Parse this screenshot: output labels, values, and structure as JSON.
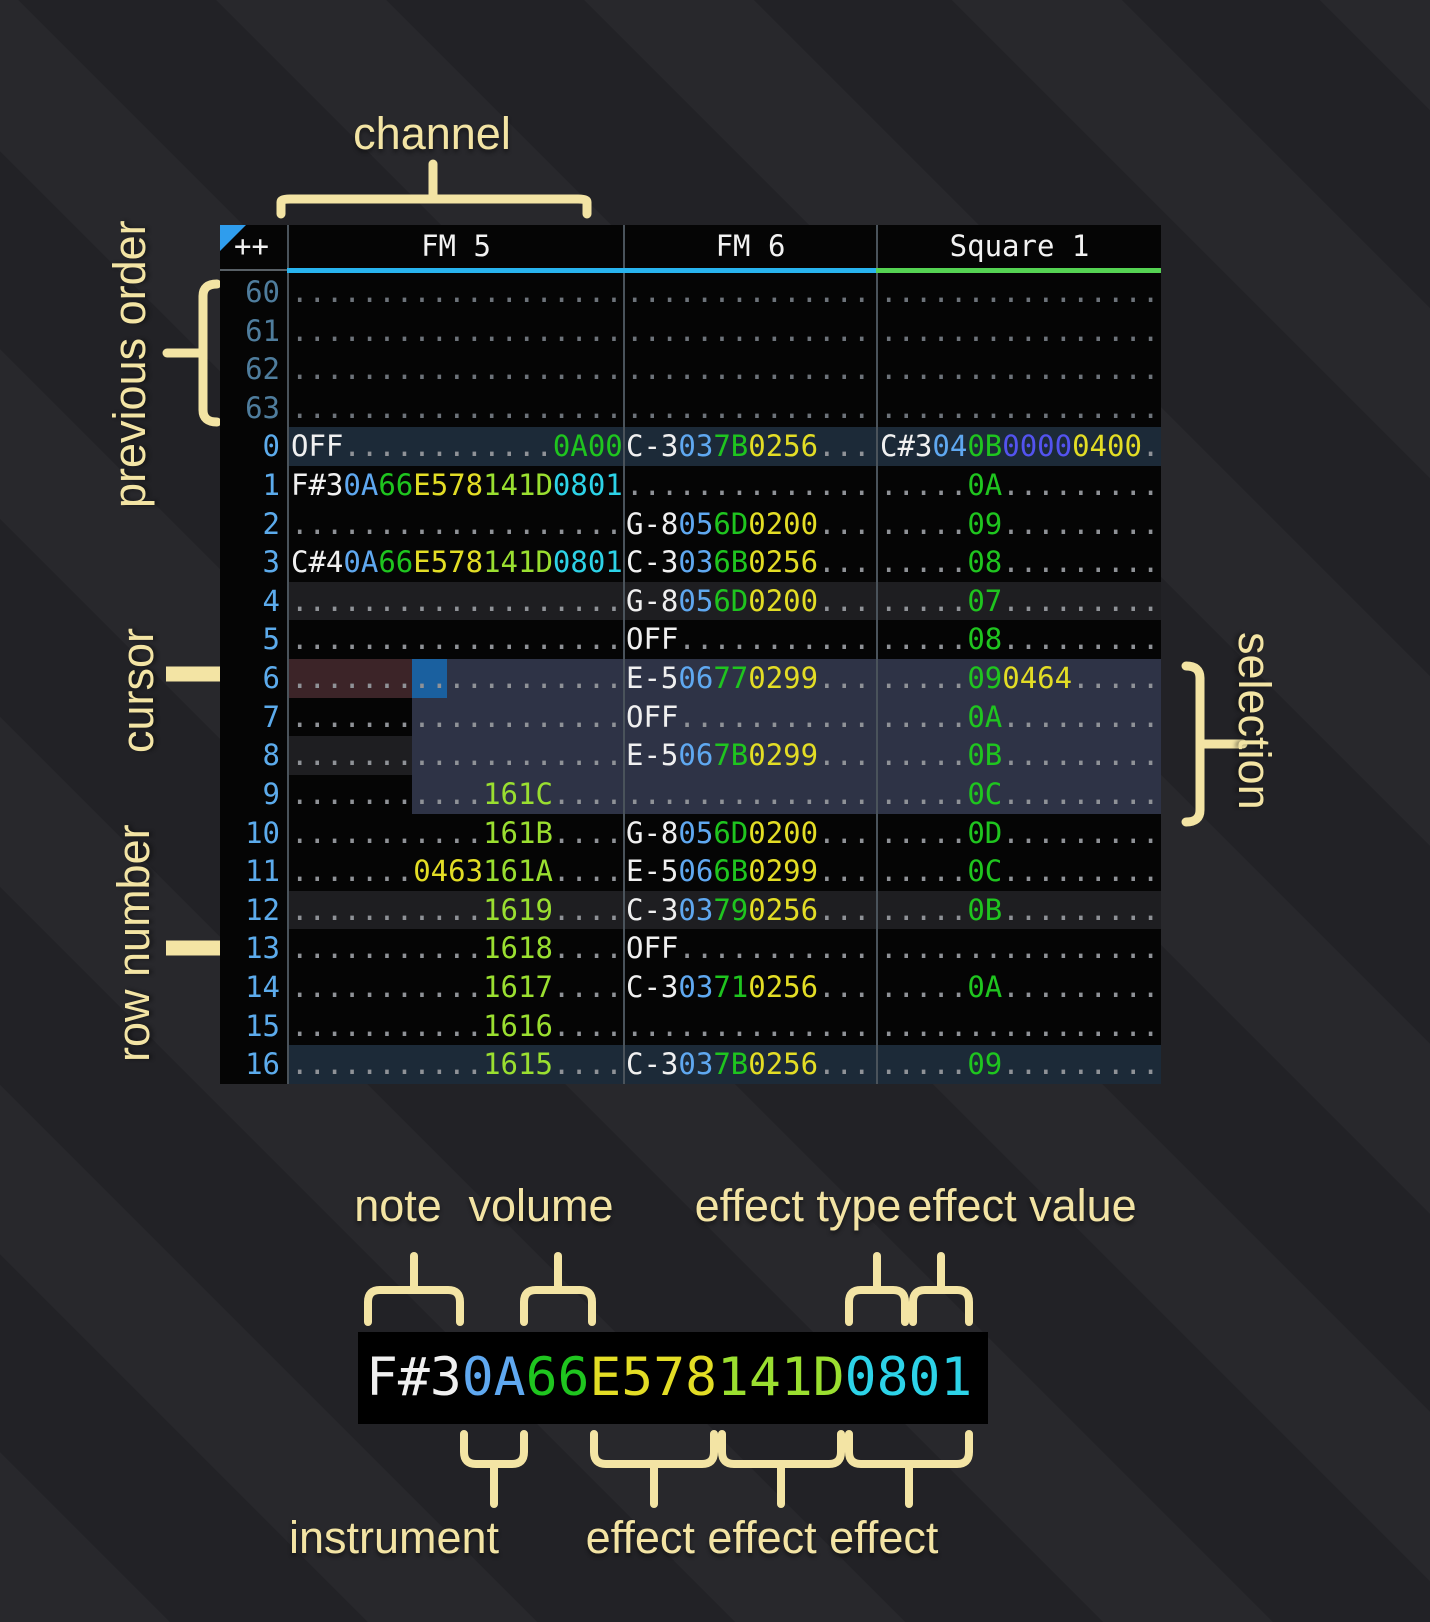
{
  "colors": {
    "anno": "#f3e4a4",
    "table-bg": "#050505",
    "grid-line": "#4a535b",
    "hl1": "#1e1e21",
    "hl2": "#1c2a38",
    "sel": "#2e3346",
    "cursor": "#1a609f",
    "maroon": "#3c2428",
    "note": "#f0f0f0",
    "ins": "#5fa8f0",
    "vol": "#1fc51f",
    "fxY": "#e3dd25",
    "fxL": "#9adf30",
    "fxC": "#2dd3e8",
    "fxI": "#5353ef",
    "fxG": "#1fc51f",
    "dot": "#8f9297",
    "dotp": "#6d737a",
    "rownum": "#5cabec",
    "rownum-prev": "#4f7d9d"
  },
  "header": {
    "corner": "++",
    "channels": [
      {
        "name": "FM 5",
        "color": "#28b4ef"
      },
      {
        "name": "FM 6",
        "color": "#28b4ef"
      },
      {
        "name": "Square 1",
        "color": "#55d353"
      }
    ]
  },
  "pattern": {
    "rows": [
      {
        "num": "60",
        "style": "prev",
        "cells": {
          "fm5": [
            [
              "...................",
              "dotp"
            ]
          ],
          "fm6": [
            [
              "..............",
              "dotp"
            ]
          ],
          "sq1": [
            [
              "................",
              "dotp"
            ]
          ]
        }
      },
      {
        "num": "61",
        "style": "prev",
        "cells": {
          "fm5": [
            [
              "...................",
              "dotp"
            ]
          ],
          "fm6": [
            [
              "..............",
              "dotp"
            ]
          ],
          "sq1": [
            [
              "................",
              "dotp"
            ]
          ]
        }
      },
      {
        "num": "62",
        "style": "prev",
        "cells": {
          "fm5": [
            [
              "...................",
              "dotp"
            ]
          ],
          "fm6": [
            [
              "..............",
              "dotp"
            ]
          ],
          "sq1": [
            [
              "................",
              "dotp"
            ]
          ]
        }
      },
      {
        "num": "63",
        "style": "prev",
        "cells": {
          "fm5": [
            [
              "...................",
              "dotp"
            ]
          ],
          "fm6": [
            [
              "..............",
              "dotp"
            ]
          ],
          "sq1": [
            [
              "................",
              "dotp"
            ]
          ]
        }
      },
      {
        "num": "0",
        "style": "hl2",
        "cells": {
          "fm5": [
            [
              "OFF",
              "note"
            ],
            [
              "............",
              "dot"
            ],
            [
              "0A00",
              "fxG"
            ]
          ],
          "fm6": [
            [
              "C-3",
              "note"
            ],
            [
              "03",
              "ins"
            ],
            [
              "7B",
              "vol"
            ],
            [
              "0256",
              "fxY"
            ],
            [
              "...",
              "dot"
            ]
          ],
          "sq1": [
            [
              "C#3",
              "note"
            ],
            [
              "04",
              "ins"
            ],
            [
              "0B",
              "vol"
            ],
            [
              "0000",
              "fxI"
            ],
            [
              "0400",
              "fxY"
            ],
            [
              ".",
              "dot"
            ]
          ]
        }
      },
      {
        "num": "1",
        "style": "",
        "cells": {
          "fm5": [
            [
              "F#3",
              "note"
            ],
            [
              "0A",
              "ins"
            ],
            [
              "66",
              "vol"
            ],
            [
              "E578",
              "fxY"
            ],
            [
              "141D",
              "fxL"
            ],
            [
              "0801",
              "fxC"
            ]
          ],
          "fm6": [
            [
              "..............",
              "dot"
            ]
          ],
          "sq1": [
            [
              ".....",
              "dot"
            ],
            [
              "0A",
              "vol"
            ],
            [
              ".........",
              "dot"
            ]
          ]
        }
      },
      {
        "num": "2",
        "style": "",
        "cells": {
          "fm5": [
            [
              "...................",
              "dot"
            ]
          ],
          "fm6": [
            [
              "G-8",
              "note"
            ],
            [
              "05",
              "ins"
            ],
            [
              "6D",
              "vol"
            ],
            [
              "0200",
              "fxY"
            ],
            [
              "...",
              "dot"
            ]
          ],
          "sq1": [
            [
              ".....",
              "dot"
            ],
            [
              "09",
              "vol"
            ],
            [
              ".........",
              "dot"
            ]
          ]
        }
      },
      {
        "num": "3",
        "style": "",
        "cells": {
          "fm5": [
            [
              "C#4",
              "note"
            ],
            [
              "0A",
              "ins"
            ],
            [
              "66",
              "vol"
            ],
            [
              "E578",
              "fxY"
            ],
            [
              "141D",
              "fxL"
            ],
            [
              "0801",
              "fxC"
            ]
          ],
          "fm6": [
            [
              "C-3",
              "note"
            ],
            [
              "03",
              "ins"
            ],
            [
              "6B",
              "vol"
            ],
            [
              "0256",
              "fxY"
            ],
            [
              "...",
              "dot"
            ]
          ],
          "sq1": [
            [
              ".....",
              "dot"
            ],
            [
              "08",
              "vol"
            ],
            [
              ".........",
              "dot"
            ]
          ]
        }
      },
      {
        "num": "4",
        "style": "hl1",
        "cells": {
          "fm5": [
            [
              "...................",
              "dot"
            ]
          ],
          "fm6": [
            [
              "G-8",
              "note"
            ],
            [
              "05",
              "ins"
            ],
            [
              "6D",
              "vol"
            ],
            [
              "0200",
              "fxY"
            ],
            [
              "...",
              "dot"
            ]
          ],
          "sq1": [
            [
              ".....",
              "dot"
            ],
            [
              "07",
              "vol"
            ],
            [
              ".........",
              "dot"
            ]
          ]
        }
      },
      {
        "num": "5",
        "style": "",
        "cells": {
          "fm5": [
            [
              "...................",
              "dot"
            ]
          ],
          "fm6": [
            [
              "OFF",
              "note"
            ],
            [
              "...........",
              "dot"
            ]
          ],
          "sq1": [
            [
              ".....",
              "dot"
            ],
            [
              "08",
              "vol"
            ],
            [
              ".........",
              "dot"
            ]
          ]
        }
      },
      {
        "num": "6",
        "style": "cur",
        "cells": {
          "fm5": [
            [
              "...................",
              "dot"
            ]
          ],
          "fm6": [
            [
              "E-5",
              "note"
            ],
            [
              "06",
              "ins"
            ],
            [
              "77",
              "vol"
            ],
            [
              "0299",
              "fxY"
            ],
            [
              "...",
              "dot"
            ]
          ],
          "sq1": [
            [
              ".....",
              "dot"
            ],
            [
              "09",
              "vol"
            ],
            [
              "0464",
              "fxY"
            ],
            [
              ".....",
              "dot"
            ]
          ]
        }
      },
      {
        "num": "7",
        "style": "sel",
        "cells": {
          "fm5": [
            [
              "...................",
              "dot"
            ]
          ],
          "fm6": [
            [
              "OFF",
              "note"
            ],
            [
              "...........",
              "dot"
            ]
          ],
          "sq1": [
            [
              ".....",
              "dot"
            ],
            [
              "0A",
              "vol"
            ],
            [
              ".........",
              "dot"
            ]
          ]
        }
      },
      {
        "num": "8",
        "style": "hl1 sel",
        "cells": {
          "fm5": [
            [
              "...................",
              "dot"
            ]
          ],
          "fm6": [
            [
              "E-5",
              "note"
            ],
            [
              "06",
              "ins"
            ],
            [
              "7B",
              "vol"
            ],
            [
              "0299",
              "fxY"
            ],
            [
              "...",
              "dot"
            ]
          ],
          "sq1": [
            [
              ".....",
              "dot"
            ],
            [
              "0B",
              "vol"
            ],
            [
              ".........",
              "dot"
            ]
          ]
        }
      },
      {
        "num": "9",
        "style": "sel",
        "cells": {
          "fm5": [
            [
              "...........",
              "dot"
            ],
            [
              "161C",
              "fxL"
            ],
            [
              "....",
              "dot"
            ]
          ],
          "fm6": [
            [
              "..............",
              "dot"
            ]
          ],
          "sq1": [
            [
              ".....",
              "dot"
            ],
            [
              "0C",
              "vol"
            ],
            [
              ".........",
              "dot"
            ]
          ]
        }
      },
      {
        "num": "10",
        "style": "",
        "cells": {
          "fm5": [
            [
              "...........",
              "dot"
            ],
            [
              "161B",
              "fxL"
            ],
            [
              "....",
              "dot"
            ]
          ],
          "fm6": [
            [
              "G-8",
              "note"
            ],
            [
              "05",
              "ins"
            ],
            [
              "6D",
              "vol"
            ],
            [
              "0200",
              "fxY"
            ],
            [
              "...",
              "dot"
            ]
          ],
          "sq1": [
            [
              ".....",
              "dot"
            ],
            [
              "0D",
              "vol"
            ],
            [
              ".........",
              "dot"
            ]
          ]
        }
      },
      {
        "num": "11",
        "style": "",
        "cells": {
          "fm5": [
            [
              ".......",
              "dot"
            ],
            [
              "0463",
              "fxY"
            ],
            [
              "161A",
              "fxL"
            ],
            [
              "....",
              "dot"
            ]
          ],
          "fm6": [
            [
              "E-5",
              "note"
            ],
            [
              "06",
              "ins"
            ],
            [
              "6B",
              "vol"
            ],
            [
              "0299",
              "fxY"
            ],
            [
              "...",
              "dot"
            ]
          ],
          "sq1": [
            [
              ".....",
              "dot"
            ],
            [
              "0C",
              "vol"
            ],
            [
              ".........",
              "dot"
            ]
          ]
        }
      },
      {
        "num": "12",
        "style": "hl1",
        "cells": {
          "fm5": [
            [
              "...........",
              "dot"
            ],
            [
              "1619",
              "fxL"
            ],
            [
              "....",
              "dot"
            ]
          ],
          "fm6": [
            [
              "C-3",
              "note"
            ],
            [
              "03",
              "ins"
            ],
            [
              "79",
              "vol"
            ],
            [
              "0256",
              "fxY"
            ],
            [
              "...",
              "dot"
            ]
          ],
          "sq1": [
            [
              ".....",
              "dot"
            ],
            [
              "0B",
              "vol"
            ],
            [
              ".........",
              "dot"
            ]
          ]
        }
      },
      {
        "num": "13",
        "style": "",
        "cells": {
          "fm5": [
            [
              "...........",
              "dot"
            ],
            [
              "1618",
              "fxL"
            ],
            [
              "....",
              "dot"
            ]
          ],
          "fm6": [
            [
              "OFF",
              "note"
            ],
            [
              "...........",
              "dot"
            ]
          ],
          "sq1": [
            [
              "................",
              "dot"
            ]
          ]
        }
      },
      {
        "num": "14",
        "style": "",
        "cells": {
          "fm5": [
            [
              "...........",
              "dot"
            ],
            [
              "1617",
              "fxL"
            ],
            [
              "....",
              "dot"
            ]
          ],
          "fm6": [
            [
              "C-3",
              "note"
            ],
            [
              "03",
              "ins"
            ],
            [
              "71",
              "vol"
            ],
            [
              "0256",
              "fxY"
            ],
            [
              "...",
              "dot"
            ]
          ],
          "sq1": [
            [
              ".....",
              "dot"
            ],
            [
              "0A",
              "vol"
            ],
            [
              ".........",
              "dot"
            ]
          ]
        }
      },
      {
        "num": "15",
        "style": "",
        "cells": {
          "fm5": [
            [
              "...........",
              "dot"
            ],
            [
              "1616",
              "fxL"
            ],
            [
              "....",
              "dot"
            ]
          ],
          "fm6": [
            [
              "..............",
              "dot"
            ]
          ],
          "sq1": [
            [
              "................",
              "dot"
            ]
          ]
        }
      },
      {
        "num": "16",
        "style": "hl2",
        "cells": {
          "fm5": [
            [
              "...........",
              "dot"
            ],
            [
              "1615",
              "fxL"
            ],
            [
              "....",
              "dot"
            ]
          ],
          "fm6": [
            [
              "C-3",
              "note"
            ],
            [
              "03",
              "ins"
            ],
            [
              "7B",
              "vol"
            ],
            [
              "0256",
              "fxY"
            ],
            [
              "...",
              "dot"
            ]
          ],
          "sq1": [
            [
              ".....",
              "dot"
            ],
            [
              "09",
              "vol"
            ],
            [
              ".........",
              "dot"
            ]
          ]
        }
      }
    ]
  },
  "legend": {
    "segments": [
      [
        "F#3",
        "note"
      ],
      [
        "0A",
        "ins"
      ],
      [
        "66",
        "vol"
      ],
      [
        "E578",
        "fxY"
      ],
      [
        "141D",
        "fxL"
      ],
      [
        "0801",
        "fxC"
      ]
    ]
  },
  "annotations": {
    "channel": "channel",
    "previous_order": "previous order",
    "cursor": "cursor",
    "row_number": "row number",
    "selection": "selection",
    "note": "note",
    "volume": "volume",
    "effect_type": "effect type",
    "effect_value": "effect value",
    "instrument": "instrument",
    "effects": "effect effect effect"
  }
}
